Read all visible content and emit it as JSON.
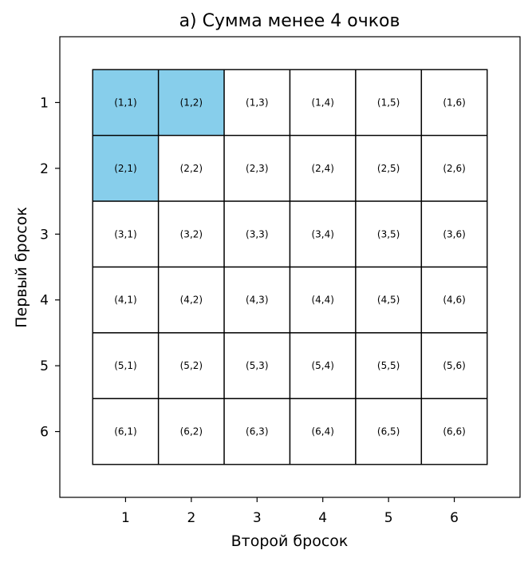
{
  "chart_data": {
    "type": "heatmap",
    "title": "а) Сумма менее 4 очков",
    "xlabel": "Второй бросок",
    "ylabel": "Первый бросок",
    "x_ticks": [
      "1",
      "2",
      "3",
      "4",
      "5",
      "6"
    ],
    "y_ticks": [
      "1",
      "2",
      "3",
      "4",
      "5",
      "6"
    ],
    "xlim": [
      0,
      7
    ],
    "ylim": [
      7,
      0
    ],
    "grid": false,
    "highlight_color": "#87ceeb",
    "cell_color": "#ffffff",
    "edge_color": "#000000",
    "cells": [
      [
        {
          "label": "(1,1)",
          "highlighted": true
        },
        {
          "label": "(1,2)",
          "highlighted": true
        },
        {
          "label": "(1,3)",
          "highlighted": false
        },
        {
          "label": "(1,4)",
          "highlighted": false
        },
        {
          "label": "(1,5)",
          "highlighted": false
        },
        {
          "label": "(1,6)",
          "highlighted": false
        }
      ],
      [
        {
          "label": "(2,1)",
          "highlighted": true
        },
        {
          "label": "(2,2)",
          "highlighted": false
        },
        {
          "label": "(2,3)",
          "highlighted": false
        },
        {
          "label": "(2,4)",
          "highlighted": false
        },
        {
          "label": "(2,5)",
          "highlighted": false
        },
        {
          "label": "(2,6)",
          "highlighted": false
        }
      ],
      [
        {
          "label": "(3,1)",
          "highlighted": false
        },
        {
          "label": "(3,2)",
          "highlighted": false
        },
        {
          "label": "(3,3)",
          "highlighted": false
        },
        {
          "label": "(3,4)",
          "highlighted": false
        },
        {
          "label": "(3,5)",
          "highlighted": false
        },
        {
          "label": "(3,6)",
          "highlighted": false
        }
      ],
      [
        {
          "label": "(4,1)",
          "highlighted": false
        },
        {
          "label": "(4,2)",
          "highlighted": false
        },
        {
          "label": "(4,3)",
          "highlighted": false
        },
        {
          "label": "(4,4)",
          "highlighted": false
        },
        {
          "label": "(4,5)",
          "highlighted": false
        },
        {
          "label": "(4,6)",
          "highlighted": false
        }
      ],
      [
        {
          "label": "(5,1)",
          "highlighted": false
        },
        {
          "label": "(5,2)",
          "highlighted": false
        },
        {
          "label": "(5,3)",
          "highlighted": false
        },
        {
          "label": "(5,4)",
          "highlighted": false
        },
        {
          "label": "(5,5)",
          "highlighted": false
        },
        {
          "label": "(5,6)",
          "highlighted": false
        }
      ],
      [
        {
          "label": "(6,1)",
          "highlighted": false
        },
        {
          "label": "(6,2)",
          "highlighted": false
        },
        {
          "label": "(6,3)",
          "highlighted": false
        },
        {
          "label": "(6,4)",
          "highlighted": false
        },
        {
          "label": "(6,5)",
          "highlighted": false
        },
        {
          "label": "(6,6)",
          "highlighted": false
        }
      ]
    ]
  }
}
